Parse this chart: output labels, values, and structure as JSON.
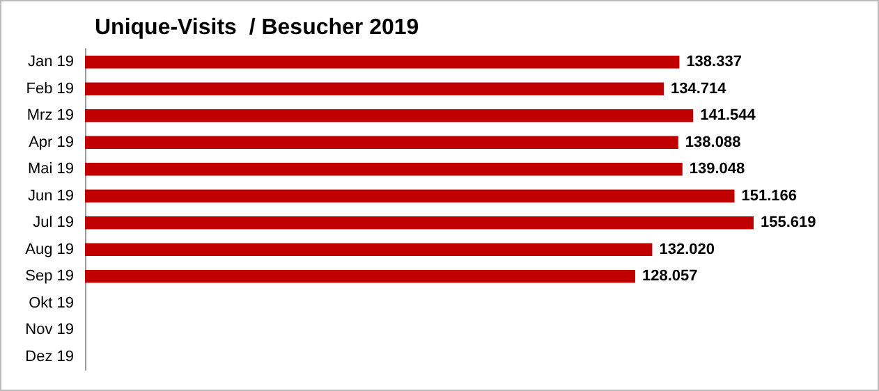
{
  "chart_data": {
    "type": "bar",
    "orientation": "horizontal",
    "title": "Unique-Visits  / Besucher 2019",
    "categories": [
      "Jan 19",
      "Feb 19",
      "Mrz 19",
      "Apr 19",
      "Mai 19",
      "Jun 19",
      "Jul 19",
      "Aug 19",
      "Sep 19",
      "Okt 19",
      "Nov 19",
      "Dez 19"
    ],
    "values": [
      138337,
      134714,
      141544,
      138088,
      139048,
      151166,
      155619,
      132020,
      128057,
      null,
      null,
      null
    ],
    "value_labels": [
      "138.337",
      "134.714",
      "141.544",
      "138.088",
      "139.048",
      "151.166",
      "155.619",
      "132.020",
      "128.057",
      null,
      null,
      null
    ],
    "color": "#c00000"
  }
}
